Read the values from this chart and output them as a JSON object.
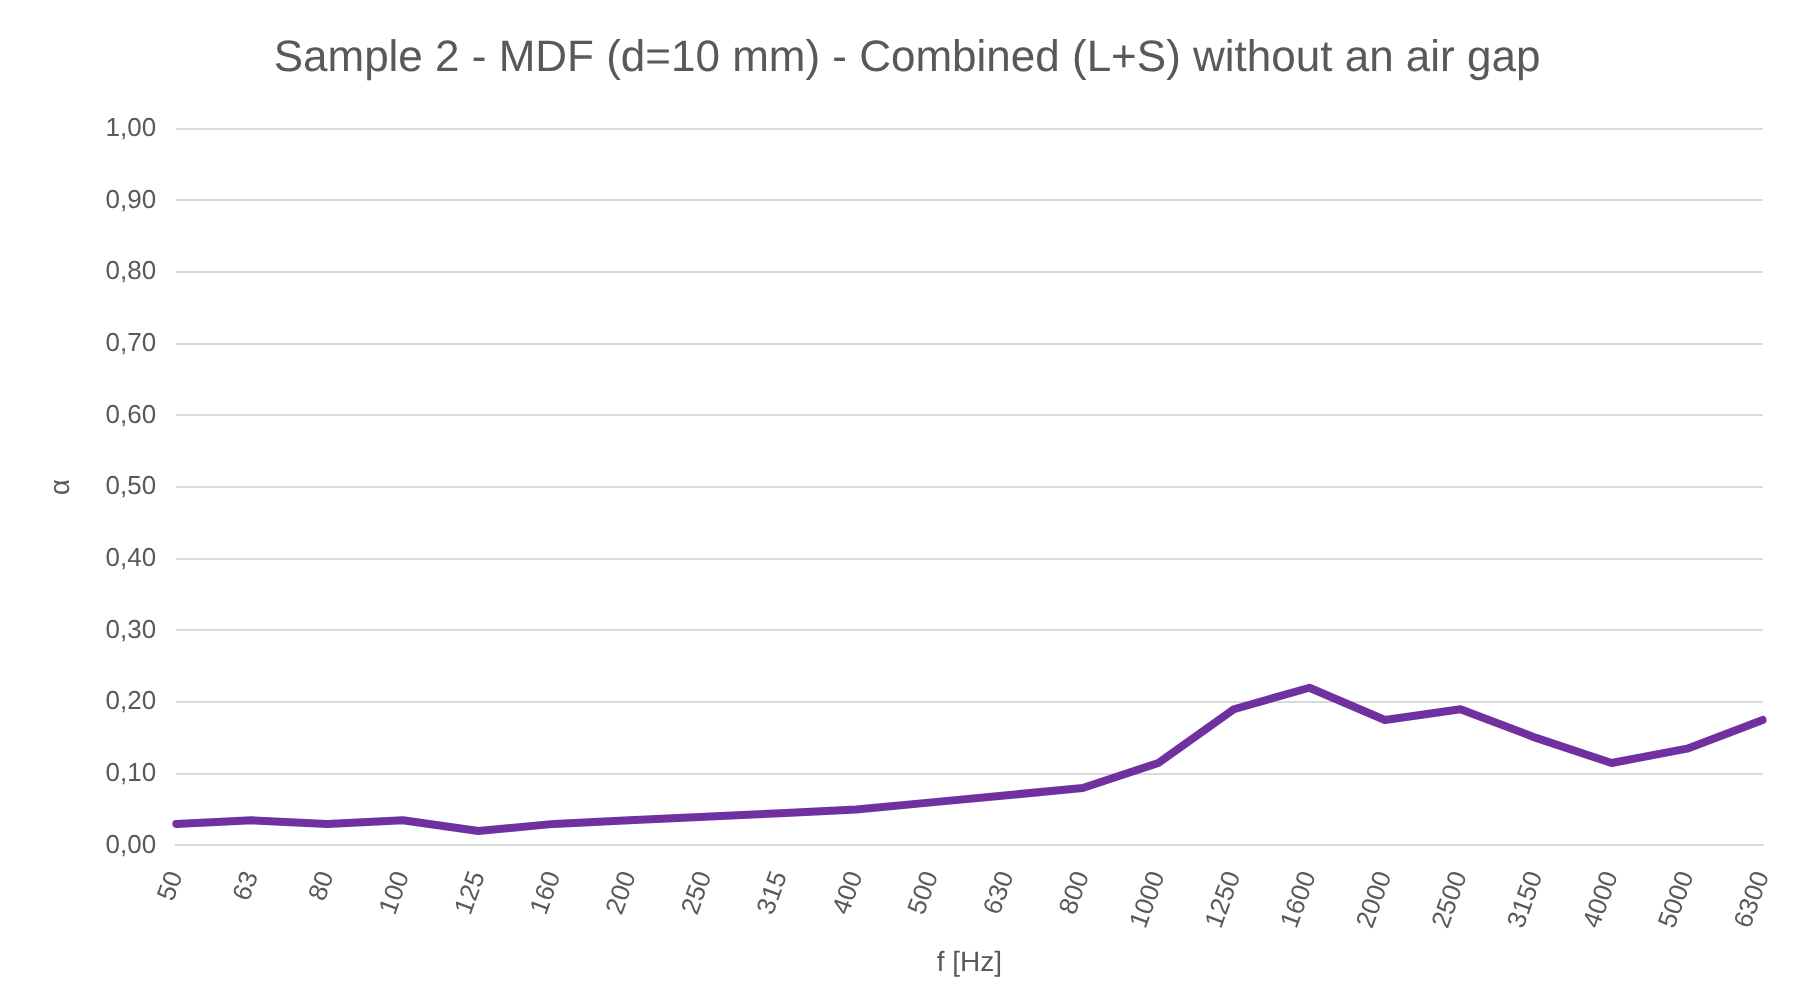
{
  "chart_data": {
    "type": "line",
    "title": "Sample 2 - MDF (d=10 mm) - Combined (L+S) without an air gap",
    "xlabel": "f [Hz]",
    "ylabel": "α",
    "categories": [
      "50",
      "63",
      "80",
      "100",
      "125",
      "160",
      "200",
      "250",
      "315",
      "400",
      "500",
      "630",
      "800",
      "1000",
      "1250",
      "1600",
      "2000",
      "2500",
      "3150",
      "4000",
      "5000",
      "6300"
    ],
    "series": [
      {
        "color": "#7030a0",
        "values": [
          0.03,
          0.035,
          0.03,
          0.035,
          0.02,
          0.03,
          0.035,
          0.04,
          0.045,
          0.05,
          0.06,
          0.07,
          0.08,
          0.115,
          0.19,
          0.22,
          0.175,
          0.19,
          0.15,
          0.115,
          0.135,
          0.175
        ]
      }
    ],
    "ylim": [
      0,
      1
    ],
    "yticks": [
      {
        "value": 0,
        "label": "0,00"
      },
      {
        "value": 0.1,
        "label": "0,10"
      },
      {
        "value": 0.2,
        "label": "0,20"
      },
      {
        "value": 0.3,
        "label": "0,30"
      },
      {
        "value": 0.4,
        "label": "0,40"
      },
      {
        "value": 0.5,
        "label": "0,50"
      },
      {
        "value": 0.6,
        "label": "0,60"
      },
      {
        "value": 0.7,
        "label": "0,70"
      },
      {
        "value": 0.8,
        "label": "0,80"
      },
      {
        "value": 0.9,
        "label": "0,90"
      },
      {
        "value": 1,
        "label": "1,00"
      }
    ],
    "grid": "y",
    "legend": false,
    "marker": "none",
    "line_style": "solid"
  }
}
